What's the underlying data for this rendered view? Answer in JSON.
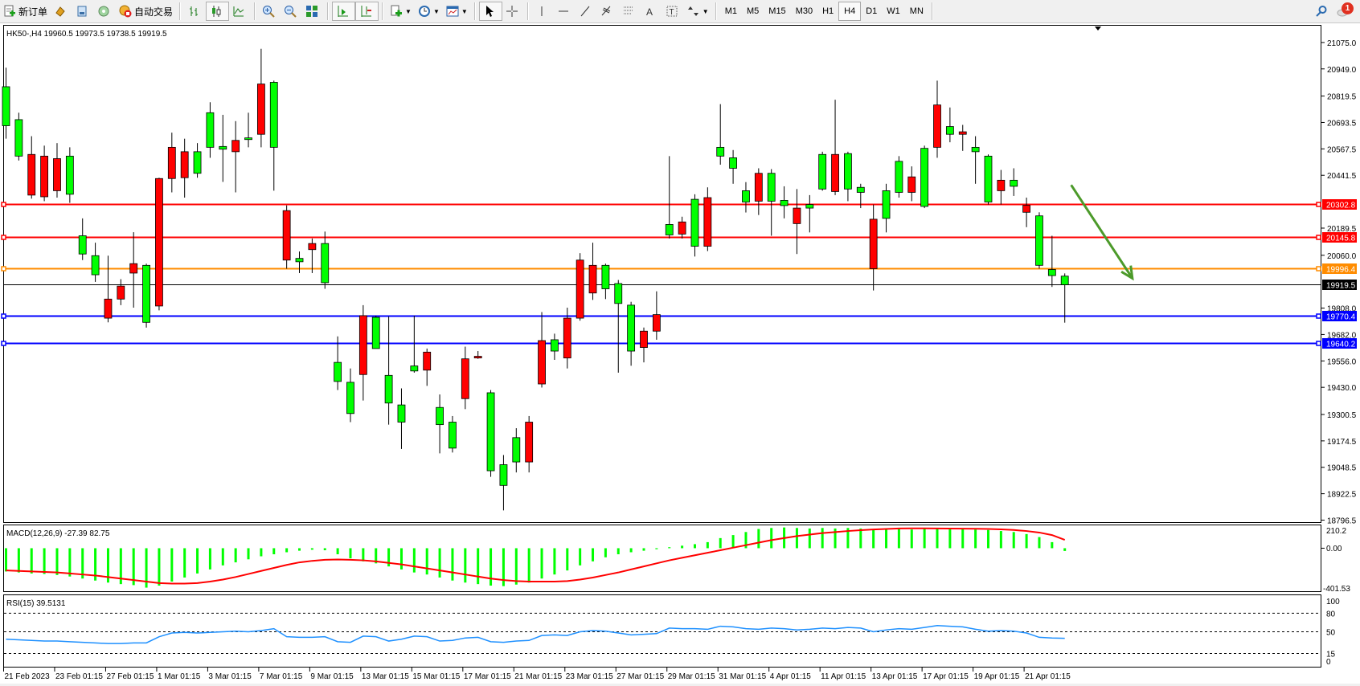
{
  "toolbar": {
    "new_order_label": "新订单",
    "auto_trading_label": "自动交易",
    "timeframes": [
      "M1",
      "M5",
      "M15",
      "M30",
      "H1",
      "H4",
      "D1",
      "W1",
      "MN"
    ],
    "active_timeframe": "H4",
    "notification_count": "1",
    "icons": [
      "new-order-icon",
      "market-watch-icon",
      "data-window-icon",
      "signals-icon",
      "auto-trading-icon",
      "bar-chart-icon",
      "candlestick-icon",
      "line-chart-icon",
      "zoom-in-icon",
      "zoom-out-icon",
      "tile-windows-icon",
      "chart-shift-icon",
      "autoscroll-icon",
      "indicators-icon",
      "periods-icon",
      "templates-icon",
      "cursor-icon",
      "crosshair-icon",
      "vertical-line-icon",
      "horizontal-line-icon",
      "trend-line-icon",
      "fibonacci-icon",
      "channel-icon",
      "text-icon",
      "label-icon",
      "arrows-icon",
      "search-icon",
      "notification-icon"
    ]
  },
  "chart": {
    "header": "HK50-,H4  19960.5 19973.5 19738.5 19919.5",
    "symbol": "HK50-",
    "period": "H4",
    "ohlc_current": {
      "open": 19960.5,
      "high": 19973.5,
      "low": 19738.5,
      "close": 19919.5
    },
    "colors": {
      "bull": "#ff0000",
      "bear": "#00ff00",
      "wick": "#000000"
    },
    "price_ticks": [
      "21075.0",
      "20949.0",
      "20819.5",
      "20693.5",
      "20567.5",
      "20441.5",
      "20189.5",
      "20060.0",
      "19808.0",
      "19682.0",
      "19556.0",
      "19430.0",
      "19300.5",
      "19174.5",
      "19048.5",
      "18922.5",
      "18796.5"
    ],
    "price_range": [
      18796.5,
      21075.0
    ],
    "levels": [
      {
        "price": 20302.8,
        "label": "20302.8",
        "color": "#ff0000"
      },
      {
        "price": 20145.8,
        "label": "20145.8",
        "color": "#ff0000"
      },
      {
        "price": 19996.4,
        "label": "19996.4",
        "color": "#ff8c00"
      },
      {
        "price": 19919.5,
        "label": "19919.5",
        "color": "#000000",
        "type": "bid"
      },
      {
        "price": 19770.4,
        "label": "19770.4",
        "color": "#0000ff"
      },
      {
        "price": 19640.2,
        "label": "19640.2",
        "color": "#0000ff"
      }
    ],
    "arrow": {
      "color": "#4c9a2a",
      "from_bar": 83.5,
      "from_price": 20395,
      "to_bar": 88.3,
      "to_price": 19950
    },
    "candles_ohlc": [
      [
        20864,
        20955,
        20616,
        20678
      ],
      [
        20707,
        20740,
        20512,
        20533
      ],
      [
        20347,
        20628,
        20330,
        20541
      ],
      [
        20339,
        20583,
        20318,
        20533
      ],
      [
        20368,
        20595,
        20335,
        20521
      ],
      [
        20533,
        20575,
        20310,
        20351
      ],
      [
        20153,
        20236,
        20037,
        20066
      ],
      [
        20058,
        20120,
        19933,
        19967
      ],
      [
        19760,
        20058,
        19740,
        19851
      ],
      [
        19851,
        19946,
        19822,
        19913
      ],
      [
        19975,
        20170,
        19810,
        20020
      ],
      [
        20012,
        20020,
        19715,
        19740
      ],
      [
        19818,
        20430,
        19797,
        20426
      ],
      [
        20426,
        20645,
        20360,
        20575
      ],
      [
        20430,
        20616,
        20335,
        20554
      ],
      [
        20554,
        20595,
        20430,
        20451
      ],
      [
        20740,
        20790,
        20525,
        20575
      ],
      [
        20579,
        20730,
        20410,
        20566
      ],
      [
        20554,
        20700,
        20360,
        20608
      ],
      [
        20620,
        20740,
        20575,
        20612
      ],
      [
        20637,
        21045,
        20575,
        20877
      ],
      [
        20885,
        20893,
        20368,
        20575
      ],
      [
        20037,
        20298,
        19996,
        20273
      ],
      [
        20045,
        20078,
        19975,
        20029
      ],
      [
        20087,
        20140,
        19975,
        20116
      ],
      [
        20116,
        20173,
        19900,
        19929
      ],
      [
        19549,
        19673,
        19417,
        19458
      ],
      [
        19454,
        19520,
        19264,
        19305
      ],
      [
        19491,
        19822,
        19367,
        19772
      ],
      [
        19764,
        19772,
        19615,
        19615
      ],
      [
        19487,
        19768,
        19252,
        19355
      ],
      [
        19346,
        19425,
        19136,
        19264
      ],
      [
        19532,
        19772,
        19500,
        19508
      ],
      [
        19512,
        19615,
        19437,
        19598
      ],
      [
        19334,
        19396,
        19115,
        19252
      ],
      [
        19264,
        19293,
        19119,
        19140
      ],
      [
        19376,
        19624,
        19326,
        19566
      ],
      [
        19570,
        19603,
        19566,
        19578
      ],
      [
        19404,
        19417,
        19003,
        19032
      ],
      [
        19061,
        19107,
        18843,
        18962
      ],
      [
        19190,
        19235,
        19024,
        19074
      ],
      [
        19074,
        19293,
        19024,
        19264
      ],
      [
        19446,
        19789,
        19429,
        19653
      ],
      [
        19657,
        19686,
        19561,
        19603
      ],
      [
        19570,
        19810,
        19520,
        19760
      ],
      [
        19760,
        20070,
        19748,
        20037
      ],
      [
        19880,
        20120,
        19847,
        20012
      ],
      [
        20012,
        20020,
        19851,
        19900
      ],
      [
        19925,
        19942,
        19500,
        19830
      ],
      [
        19822,
        19838,
        19533,
        19603
      ],
      [
        19620,
        19715,
        19549,
        19698
      ],
      [
        19698,
        19888,
        19657,
        19777
      ],
      [
        20207,
        20533,
        20140,
        20157
      ],
      [
        20161,
        20244,
        20140,
        20219
      ],
      [
        20327,
        20351,
        20054,
        20103
      ],
      [
        20103,
        20384,
        20080,
        20335
      ],
      [
        20575,
        20781,
        20492,
        20533
      ],
      [
        20525,
        20562,
        20401,
        20475
      ],
      [
        20368,
        20409,
        20264,
        20314
      ],
      [
        20318,
        20475,
        20252,
        20451
      ],
      [
        20451,
        20471,
        20153,
        20318
      ],
      [
        20322,
        20389,
        20236,
        20297
      ],
      [
        20211,
        20376,
        20066,
        20285
      ],
      [
        20302,
        20347,
        20169,
        20285
      ],
      [
        20541,
        20554,
        20368,
        20376
      ],
      [
        20364,
        20802,
        20347,
        20541
      ],
      [
        20545,
        20554,
        20318,
        20376
      ],
      [
        20384,
        20401,
        20285,
        20360
      ],
      [
        19996,
        20302,
        19892,
        20232
      ],
      [
        20368,
        20401,
        20169,
        20236
      ],
      [
        20508,
        20533,
        20335,
        20360
      ],
      [
        20360,
        20484,
        20318,
        20434
      ],
      [
        20570,
        20583,
        20285,
        20293
      ],
      [
        20575,
        20893,
        20525,
        20777
      ],
      [
        20674,
        20765,
        20599,
        20637
      ],
      [
        20637,
        20682,
        20558,
        20649
      ],
      [
        20575,
        20628,
        20401,
        20554
      ],
      [
        20533,
        20541,
        20302,
        20314
      ],
      [
        20368,
        20467,
        20302,
        20418
      ],
      [
        20418,
        20475,
        20343,
        20389
      ],
      [
        20265,
        20335,
        20194,
        20298
      ],
      [
        20248,
        20265,
        19996,
        20012
      ],
      [
        19992,
        20153,
        19909,
        19963
      ],
      [
        19960.5,
        19973.5,
        19738.5,
        19919.5
      ]
    ],
    "date_labels": [
      "21 Feb 2023",
      "23 Feb 01:15",
      "27 Feb 01:15",
      "1 Mar 01:15",
      "3 Mar 01:15",
      "7 Mar 01:15",
      "9 Mar 01:15",
      "13 Mar 01:15",
      "15 Mar 01:15",
      "17 Mar 01:15",
      "21 Mar 01:15",
      "23 Mar 01:15",
      "27 Mar 01:15",
      "29 Mar 01:15",
      "31 Mar 01:15",
      "4 Apr 01:15",
      "11 Apr 01:15",
      "13 Apr 01:15",
      "17 Apr 01:15",
      "19 Apr 01:15",
      "21 Apr 01:15"
    ]
  },
  "macd": {
    "header": "MACD(12,26,9) -27.39 82.75",
    "ticks": [
      "210.2",
      "0.00",
      "-401.53"
    ],
    "range": [
      -401.53,
      210.2
    ],
    "histogram_color": "#00ff00",
    "signal_color": "#ff0000",
    "histogram": [
      -230,
      -240,
      -250,
      -255,
      -265,
      -280,
      -300,
      -320,
      -340,
      -355,
      -365,
      -390,
      -370,
      -330,
      -290,
      -250,
      -210,
      -170,
      -140,
      -110,
      -80,
      -60,
      -40,
      -25,
      -15,
      -20,
      -60,
      -100,
      -130,
      -150,
      -180,
      -210,
      -240,
      -260,
      -290,
      -320,
      -340,
      -355,
      -370,
      -375,
      -360,
      -340,
      -300,
      -260,
      -220,
      -170,
      -130,
      -90,
      -60,
      -40,
      -25,
      -10,
      10,
      25,
      40,
      60,
      100,
      130,
      160,
      190,
      200,
      205,
      200,
      195,
      200,
      195,
      200,
      195,
      185,
      190,
      190,
      185,
      195,
      200,
      195,
      190,
      185,
      180,
      170,
      160,
      140,
      110,
      60,
      -27.39
    ],
    "signal": [
      -220,
      -225,
      -230,
      -235,
      -240,
      -250,
      -260,
      -270,
      -285,
      -300,
      -315,
      -330,
      -345,
      -350,
      -350,
      -345,
      -330,
      -310,
      -285,
      -255,
      -225,
      -195,
      -165,
      -140,
      -125,
      -115,
      -112,
      -115,
      -120,
      -130,
      -145,
      -160,
      -180,
      -200,
      -220,
      -240,
      -260,
      -280,
      -300,
      -315,
      -325,
      -330,
      -330,
      -330,
      -325,
      -310,
      -290,
      -265,
      -240,
      -210,
      -180,
      -150,
      -120,
      -95,
      -70,
      -45,
      -20,
      5,
      30,
      55,
      80,
      100,
      120,
      135,
      150,
      160,
      170,
      178,
      185,
      190,
      195,
      196,
      196,
      195,
      194,
      193,
      192,
      190,
      186,
      180,
      170,
      155,
      130,
      82.75
    ]
  },
  "rsi": {
    "header": "RSI(15) 39.5131",
    "ticks": [
      "100",
      "80",
      "50",
      "15",
      "0"
    ],
    "levels": [
      80,
      50,
      15
    ],
    "line_color": "#1e90ff",
    "values": [
      38,
      37,
      36,
      35,
      35,
      34,
      33,
      32,
      31,
      31,
      32,
      32,
      42,
      48,
      49,
      48,
      49,
      50,
      51,
      50,
      52,
      55,
      42,
      41,
      41,
      42,
      34,
      33,
      43,
      42,
      35,
      38,
      43,
      42,
      35,
      36,
      40,
      41,
      34,
      33,
      35,
      36,
      44,
      45,
      44,
      50,
      52,
      51,
      48,
      45,
      46,
      47,
      56,
      55,
      55,
      54,
      59,
      58,
      55,
      54,
      56,
      55,
      53,
      54,
      56,
      55,
      57,
      56,
      50,
      53,
      55,
      54,
      57,
      60,
      59,
      58,
      54,
      51,
      52,
      51,
      48,
      41,
      40,
      39.5131
    ]
  }
}
